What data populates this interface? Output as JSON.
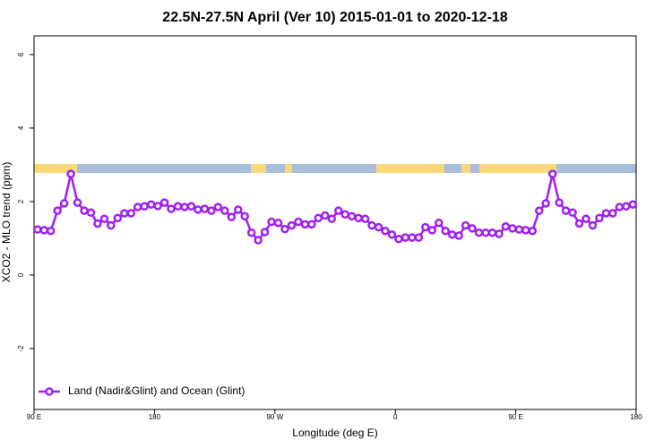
{
  "chart_data": {
    "type": "line",
    "title": "22.5N-27.5N April (Ver 10)   2015-01-01 to 2020-12-18",
    "xlabel": "Longitude (deg E)",
    "ylabel": "XCO2 - MLO trend (ppm)",
    "x": [
      92.5,
      97.5,
      102.5,
      107.5,
      112.5,
      117.5,
      122.5,
      127.5,
      132.5,
      137.5,
      142.5,
      147.5,
      152.5,
      157.5,
      162.5,
      167.5,
      172.5,
      177.5,
      182.5,
      187.5,
      192.5,
      197.5,
      202.5,
      207.5,
      212.5,
      217.5,
      222.5,
      227.5,
      232.5,
      237.5,
      242.5,
      247.5,
      252.5,
      257.5,
      262.5,
      267.5,
      272.5,
      277.5,
      282.5,
      287.5,
      292.5,
      297.5,
      302.5,
      307.5,
      312.5,
      317.5,
      322.5,
      327.5,
      332.5,
      337.5,
      342.5,
      347.5,
      352.5,
      357.5,
      362.5,
      367.5,
      372.5,
      377.5,
      382.5,
      387.5,
      392.5,
      397.5,
      402.5,
      407.5,
      412.5,
      417.5,
      422.5,
      427.5,
      432.5,
      437.5,
      442.5,
      447.5,
      452.5,
      457.5,
      462.5,
      467.5,
      472.5,
      477.5,
      482.5,
      487.5,
      492.5,
      497.5,
      502.5,
      507.5,
      512.5,
      517.5,
      522.5,
      527.5,
      532.5,
      537.5
    ],
    "series": [
      {
        "name": "Land (Nadir&Glint) and Ocean (Glint)",
        "color": "#a020f0",
        "values": [
          1.24,
          1.22,
          1.2,
          1.75,
          1.95,
          2.75,
          1.97,
          1.75,
          1.7,
          1.4,
          1.53,
          1.35,
          1.55,
          1.68,
          1.68,
          1.85,
          1.87,
          1.92,
          1.88,
          1.97,
          1.8,
          1.87,
          1.85,
          1.87,
          1.78,
          1.8,
          1.75,
          1.85,
          1.75,
          1.58,
          1.78,
          1.6,
          1.15,
          0.95,
          1.17,
          1.45,
          1.42,
          1.25,
          1.35,
          1.45,
          1.38,
          1.38,
          1.55,
          1.62,
          1.53,
          1.75,
          1.65,
          1.6,
          1.55,
          1.53,
          1.35,
          1.3,
          1.2,
          1.1,
          0.98,
          1.02,
          1.02,
          1.02,
          1.3,
          1.22,
          1.42,
          1.2,
          1.1,
          1.07,
          1.35,
          1.27,
          1.15,
          1.15,
          1.15,
          1.12,
          1.32,
          1.27,
          1.24,
          1.22,
          1.2,
          1.75,
          1.95,
          2.75,
          1.97,
          1.75,
          1.7,
          1.4,
          1.53,
          1.35,
          1.55,
          1.68,
          1.68,
          1.85,
          1.87,
          1.92
        ]
      }
    ],
    "xlim": [
      90,
      540
    ],
    "xticks": [
      {
        "value": 90,
        "label": "90 E"
      },
      180,
      {
        "value": 270,
        "label": "90 W"
      },
      {
        "value": 360,
        "label": "0"
      },
      {
        "value": 450,
        "label": "90 E"
      },
      {
        "value": 540,
        "label": "180"
      }
    ],
    "ylim": [
      -3.66,
      6.51
    ],
    "yticks": [
      -2,
      0,
      2,
      4,
      6
    ],
    "legend": "bottom-left"
  }
}
